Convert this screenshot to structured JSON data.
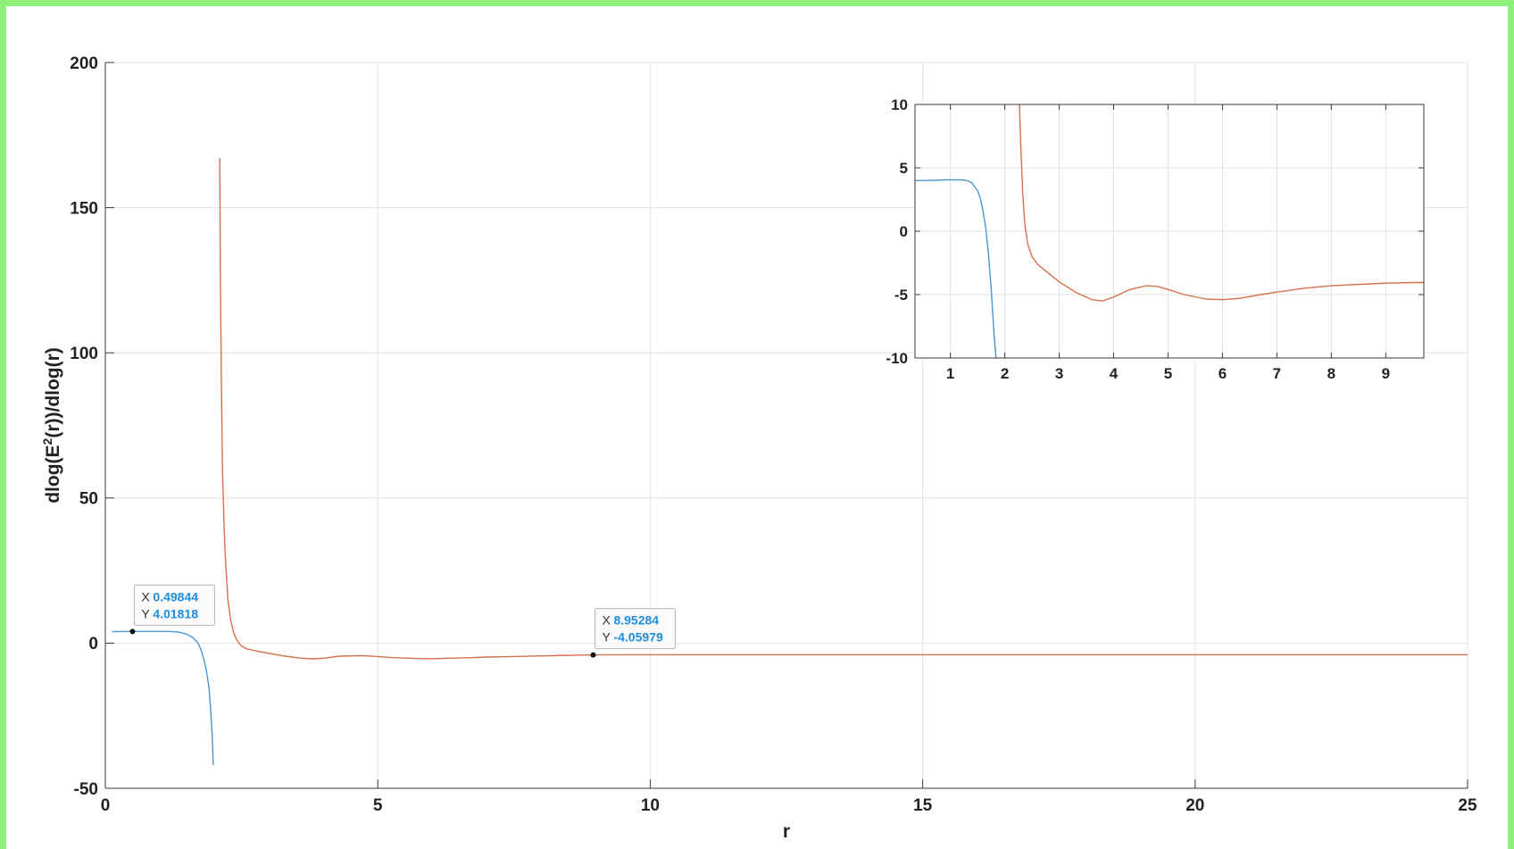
{
  "chart_data": [
    {
      "type": "line",
      "title": "",
      "xlabel": "r",
      "ylabel": "dlog(E²(r))/dlog(r)",
      "ylabel_parts": {
        "pre": "dlog(E",
        "sup": "2",
        "post": "(r))/dlog(r)"
      },
      "xlim": [
        0,
        25
      ],
      "ylim": [
        -50,
        200
      ],
      "x_ticks": [
        0,
        5,
        10,
        15,
        20,
        25
      ],
      "y_ticks": [
        -50,
        0,
        50,
        100,
        150,
        200
      ],
      "x_tick_labels": [
        "0",
        "5",
        "10",
        "15",
        "20",
        "25"
      ],
      "y_tick_labels": [
        "-50",
        "0",
        "50",
        "100",
        "150",
        "200"
      ],
      "grid": true,
      "legend": "none",
      "series": [
        {
          "color": "#4a98d0",
          "x": [
            0.12,
            0.3,
            0.5,
            0.8,
            1.0,
            1.2,
            1.35,
            1.5,
            1.6,
            1.7,
            1.75,
            1.8,
            1.85,
            1.9,
            1.93,
            1.96,
            1.98
          ],
          "y": [
            4.0,
            4.0,
            4.02,
            4.05,
            4.05,
            4.0,
            3.8,
            3.0,
            2.0,
            0.0,
            -2.0,
            -5.0,
            -9.0,
            -15.0,
            -22.0,
            -31.0,
            -42.0
          ]
        },
        {
          "color": "#d6704a",
          "x": [
            2.1,
            2.11,
            2.13,
            2.15,
            2.18,
            2.2,
            2.25,
            2.3,
            2.35,
            2.4,
            2.45,
            2.5,
            2.6,
            2.8,
            3.0,
            3.3,
            3.6,
            3.8,
            4.0,
            4.3,
            4.7,
            5.0,
            5.3,
            5.7,
            6.0,
            6.3,
            6.7,
            7.0,
            7.5,
            8.0,
            8.5,
            9.0,
            9.5,
            10.0,
            12.0,
            15.0,
            20.0,
            25.0
          ],
          "y": [
            167.0,
            130.0,
            90.0,
            60.0,
            40.0,
            30.0,
            15.0,
            8.0,
            4.0,
            1.5,
            0.0,
            -1.0,
            -2.0,
            -2.8,
            -3.5,
            -4.5,
            -5.2,
            -5.4,
            -5.2,
            -4.5,
            -4.3,
            -4.6,
            -5.0,
            -5.3,
            -5.35,
            -5.2,
            -5.0,
            -4.8,
            -4.6,
            -4.4,
            -4.2,
            -4.06,
            -4.0,
            -4.0,
            -4.0,
            -4.0,
            -4.0,
            -4.0
          ]
        }
      ],
      "datatips": [
        {
          "x": 0.49844,
          "y": 4.01818,
          "x_label": "X",
          "y_label": "Y",
          "x_text": "0.49844",
          "y_text": "4.01818"
        },
        {
          "x": 8.95284,
          "y": -4.05979,
          "x_label": "X",
          "y_label": "Y",
          "x_text": "8.95284",
          "y_text": "-4.05979"
        }
      ]
    },
    {
      "type": "line",
      "title": "",
      "xlabel": "",
      "ylabel": "",
      "xlim": [
        0.35,
        9.7
      ],
      "ylim": [
        -10,
        10
      ],
      "x_ticks": [
        1,
        2,
        3,
        4,
        5,
        6,
        7,
        8,
        9
      ],
      "y_ticks": [
        -10,
        -5,
        0,
        5,
        10
      ],
      "x_tick_labels": [
        "1",
        "2",
        "3",
        "4",
        "5",
        "6",
        "7",
        "8",
        "9"
      ],
      "y_tick_labels": [
        "-10",
        "-5",
        "0",
        "5",
        "10"
      ],
      "grid": true,
      "legend": "none",
      "series": [
        {
          "color": "#4a98d0",
          "x": [
            0.35,
            0.6,
            0.9,
            1.1,
            1.2,
            1.3,
            1.4,
            1.5,
            1.55,
            1.6,
            1.65,
            1.7,
            1.75,
            1.8,
            1.84
          ],
          "y": [
            4.0,
            4.0,
            4.05,
            4.05,
            4.05,
            4.0,
            3.8,
            3.2,
            2.6,
            1.6,
            0.2,
            -1.8,
            -4.5,
            -8.0,
            -10.0
          ]
        },
        {
          "color": "#d6704a",
          "x": [
            2.27,
            2.3,
            2.33,
            2.37,
            2.42,
            2.5,
            2.6,
            2.8,
            3.0,
            3.3,
            3.6,
            3.8,
            4.0,
            4.3,
            4.6,
            4.8,
            5.0,
            5.3,
            5.7,
            6.0,
            6.3,
            6.7,
            7.0,
            7.5,
            8.0,
            8.5,
            9.0,
            9.5,
            9.7
          ],
          "y": [
            10.0,
            6.0,
            3.0,
            0.5,
            -1.0,
            -2.0,
            -2.6,
            -3.3,
            -4.0,
            -4.8,
            -5.4,
            -5.5,
            -5.2,
            -4.6,
            -4.3,
            -4.35,
            -4.6,
            -5.0,
            -5.35,
            -5.4,
            -5.3,
            -5.0,
            -4.8,
            -4.5,
            -4.3,
            -4.2,
            -4.1,
            -4.05,
            -4.05
          ]
        }
      ]
    }
  ]
}
